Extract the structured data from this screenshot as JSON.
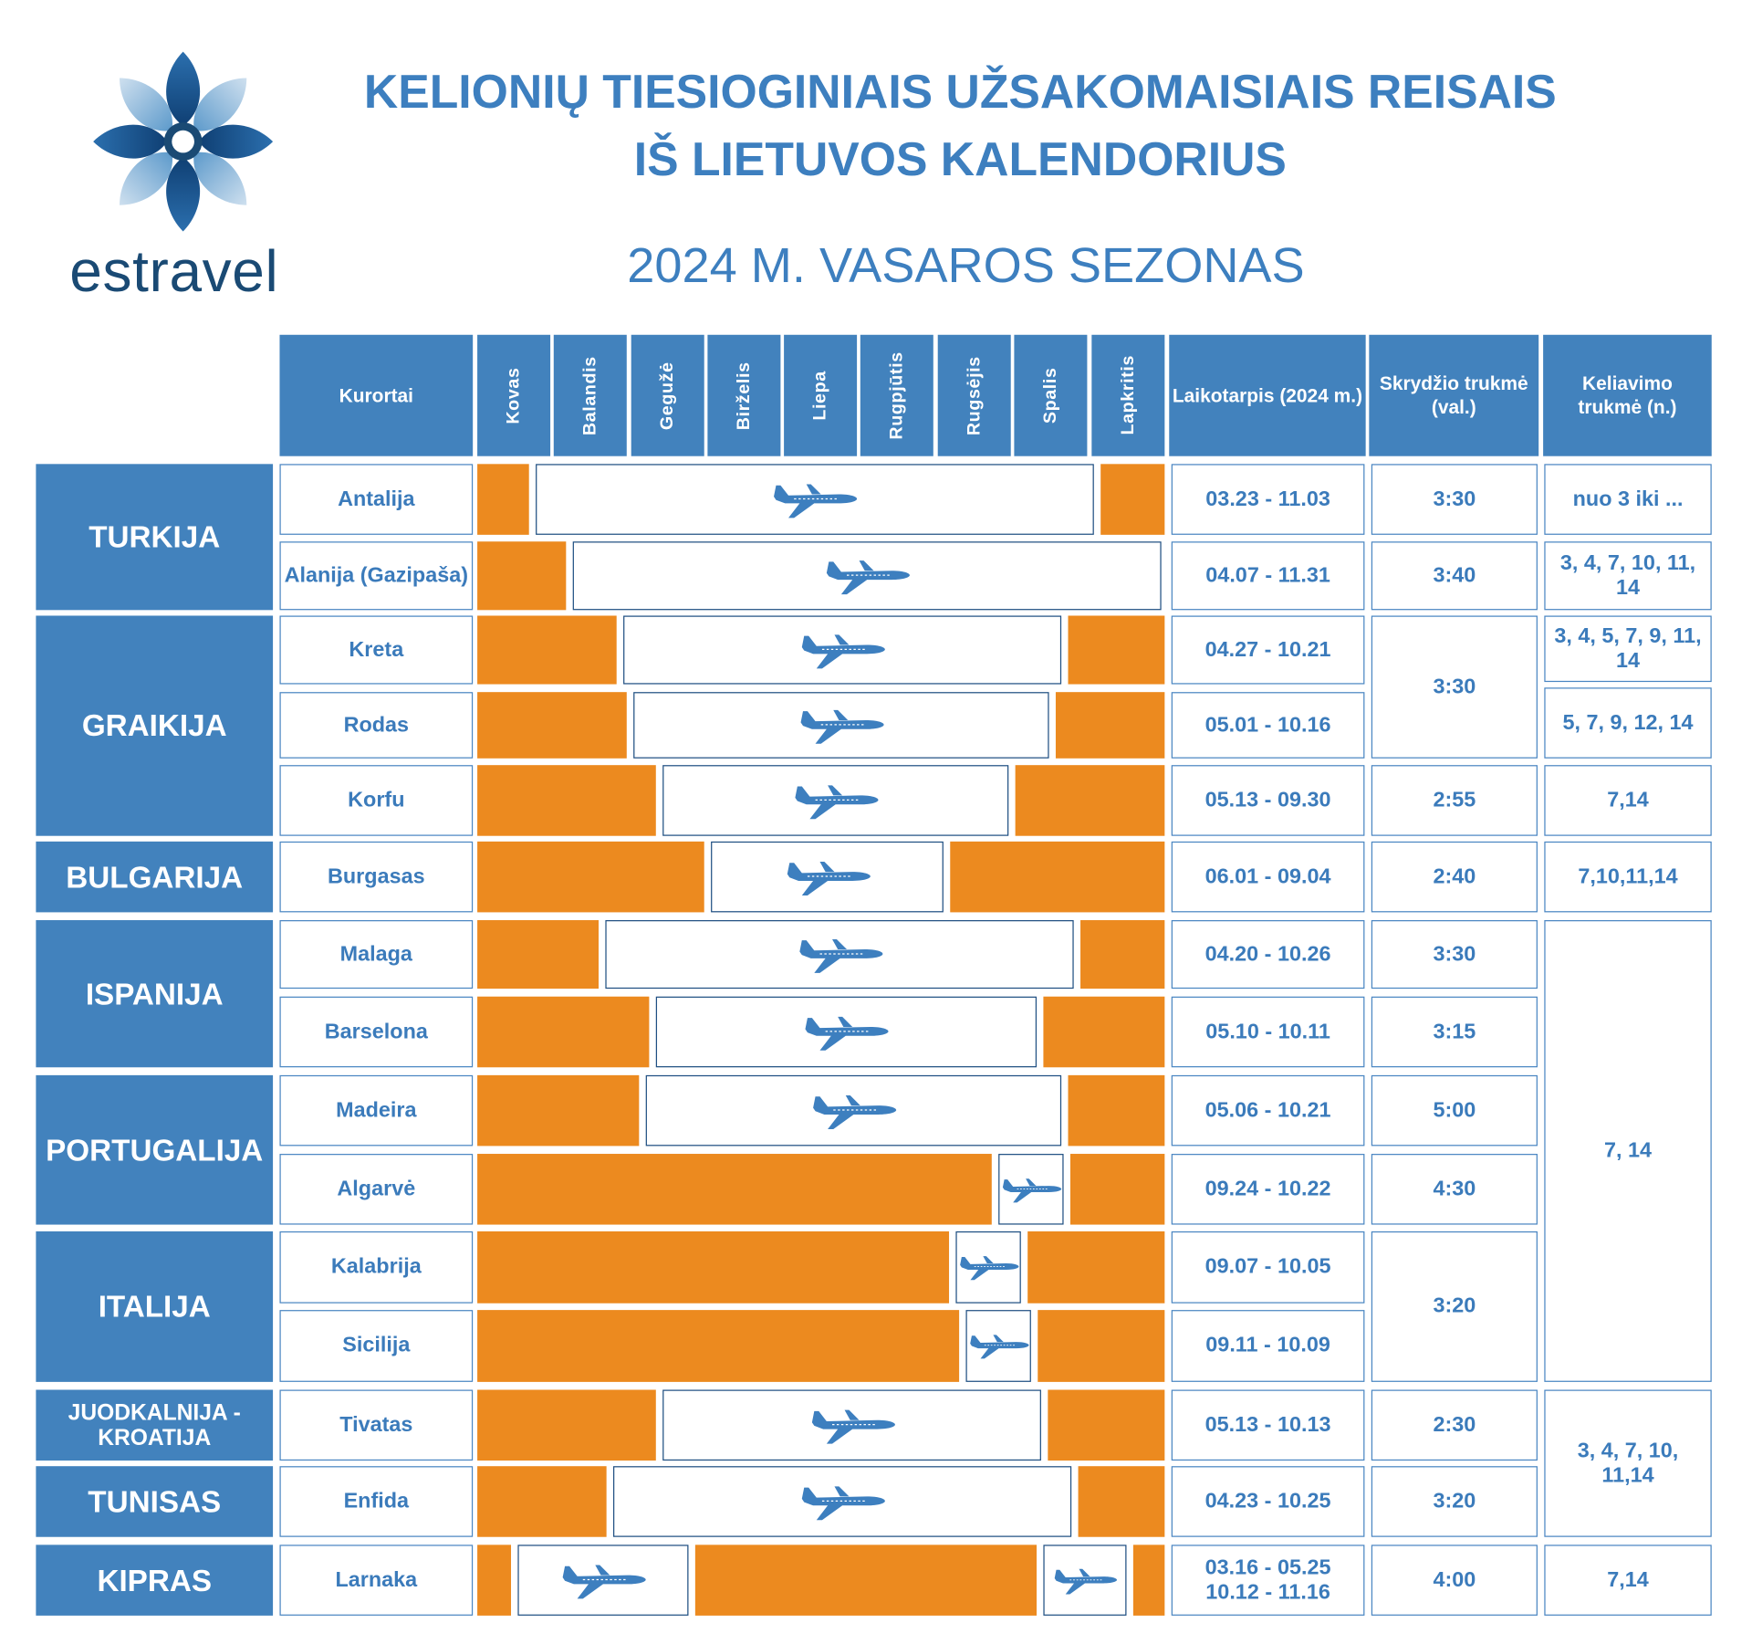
{
  "header": {
    "title_line1": "KELIONIŲ TIESIOGINIAIS UŽSAKOMAISIAIS REISAIS",
    "title_line2": "IŠ LIETUVOS KALENDORIUS",
    "subtitle": "2024 M. VASAROS SEZONAS",
    "brand": "estravel"
  },
  "colors": {
    "blue": "#4282bd",
    "orange": "#ec8a1f",
    "text": "#3b7bbb",
    "navy": "#1a4a74"
  },
  "columns": {
    "resorts": "Kurortai",
    "months": [
      "Kovas",
      "Balandis",
      "Gegužė",
      "Birželis",
      "Liepa",
      "Rugpjūtis",
      "Rugsėjis",
      "Spalis",
      "Lapkritis"
    ],
    "period": "Laikotarpis (2024 m.)",
    "flight_duration": "Skrydžio trukmė (val.)",
    "trip_duration": "Keliavimo trukmė (n.)"
  },
  "countries": [
    "TURKIJA",
    "GRAIKIJA",
    "BULGARIJA",
    "ISPANIJA",
    "PORTUGALIJA",
    "ITALIJA",
    "JUODKALNIJA - KROATIJA",
    "TUNISAS",
    "KIPRAS"
  ],
  "rows": [
    {
      "resort": "Antalija",
      "period": "03.23 - 11.03",
      "ranges": [
        [
          "03.23",
          "11.03"
        ]
      ]
    },
    {
      "resort": "Alanija (Gazipaša)",
      "period": "04.07 - 11.31",
      "ranges": [
        [
          "04.07",
          "11.31"
        ]
      ]
    },
    {
      "resort": "Kreta",
      "period": "04.27 - 10.21",
      "ranges": [
        [
          "04.27",
          "10.21"
        ]
      ]
    },
    {
      "resort": "Rodas",
      "period": "05.01 - 10.16",
      "ranges": [
        [
          "05.01",
          "10.16"
        ]
      ]
    },
    {
      "resort": "Korfu",
      "period": "05.13 - 09.30",
      "ranges": [
        [
          "05.13",
          "09.30"
        ]
      ]
    },
    {
      "resort": "Burgasas",
      "period": "06.01 - 09.04",
      "ranges": [
        [
          "06.01",
          "09.04"
        ]
      ]
    },
    {
      "resort": "Malaga",
      "period": "04.20 - 10.26",
      "ranges": [
        [
          "04.20",
          "10.26"
        ]
      ]
    },
    {
      "resort": "Barselona",
      "period": "05.10 - 10.11",
      "ranges": [
        [
          "05.10",
          "10.11"
        ]
      ]
    },
    {
      "resort": "Madeira",
      "period": "05.06 - 10.21",
      "ranges": [
        [
          "05.06",
          "10.21"
        ]
      ]
    },
    {
      "resort": "Algarvė",
      "period": "09.24 - 10.22",
      "ranges": [
        [
          "09.24",
          "10.22"
        ]
      ]
    },
    {
      "resort": "Kalabrija",
      "period": "09.07 - 10.05",
      "ranges": [
        [
          "09.07",
          "10.05"
        ]
      ]
    },
    {
      "resort": "Sicilija",
      "period": "09.11 - 10.09",
      "ranges": [
        [
          "09.11",
          "10.09"
        ]
      ]
    },
    {
      "resort": "Tivatas",
      "period": "05.13 - 10.13",
      "ranges": [
        [
          "05.13",
          "10.13"
        ]
      ]
    },
    {
      "resort": "Enfida",
      "period": "04.23 - 10.25",
      "ranges": [
        [
          "04.23",
          "10.25"
        ]
      ]
    },
    {
      "resort": "Larnaka",
      "period": "03.16 - 05.25 10.12 - 11.16",
      "ranges": [
        [
          "03.16",
          "05.25"
        ],
        [
          "10.12",
          "11.16"
        ]
      ]
    }
  ],
  "flight_durations": [
    "3:30",
    "3:40",
    "3:30",
    "2:55",
    "2:40",
    "3:30",
    "3:15",
    "5:00",
    "4:30",
    "3:20",
    "2:30",
    "3:20",
    "4:00"
  ],
  "trip_durations": [
    "nuo 3 iki ...",
    "3, 4, 7, 10, 11, 14",
    "3, 4, 5, 7, 9, 11, 14",
    "5, 7, 9, 12, 14",
    "7,14",
    "7,10,11,14",
    "7, 14",
    "3, 4, 7, 10, 11,14",
    "7,14"
  ]
}
